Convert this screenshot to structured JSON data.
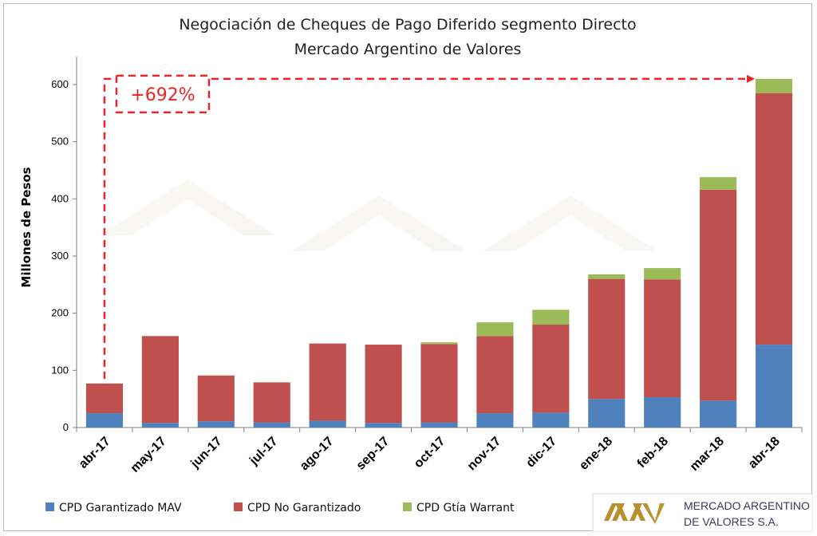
{
  "chart_data": {
    "type": "bar",
    "stacked": true,
    "title": [
      "Negociación de Cheques de Pago Diferido segmento Directo",
      "Mercado Argentino de Valores"
    ],
    "ylabel": "Millones de Pesos",
    "xlabel": "",
    "ylim": [
      0,
      650
    ],
    "yticks": [
      0,
      100,
      200,
      300,
      400,
      500,
      600
    ],
    "categories": [
      "abr-17",
      "may-17",
      "jun-17",
      "jul-17",
      "ago-17",
      "sep-17",
      "oct-17",
      "nov-17",
      "dic-17",
      "ene-18",
      "feb-18",
      "mar-18",
      "abr-18"
    ],
    "series": [
      {
        "name": "CPD Garantizado MAV",
        "color": "#4f81bd",
        "values": [
          25,
          8,
          11,
          9,
          12,
          8,
          9,
          25,
          26,
          50,
          53,
          47,
          145
        ]
      },
      {
        "name": "CPD No Garantizado",
        "color": "#c0504d",
        "values": [
          52,
          152,
          80,
          70,
          135,
          137,
          137,
          135,
          154,
          210,
          206,
          369,
          440
        ]
      },
      {
        "name": "CPD Gtía Warrant",
        "color": "#9bbb59",
        "values": [
          0,
          0,
          0,
          0,
          0,
          0,
          3,
          24,
          26,
          8,
          20,
          22,
          25
        ]
      }
    ],
    "annotation": {
      "text": "+692%",
      "from_category": "abr-17",
      "to_category": "abr-18",
      "color": "#e8262a"
    },
    "legend_position": "bottom-left",
    "grid": false
  },
  "logo": {
    "line1": "MERCADO ARGENTINO",
    "line2": "DE VALORES S.A."
  }
}
